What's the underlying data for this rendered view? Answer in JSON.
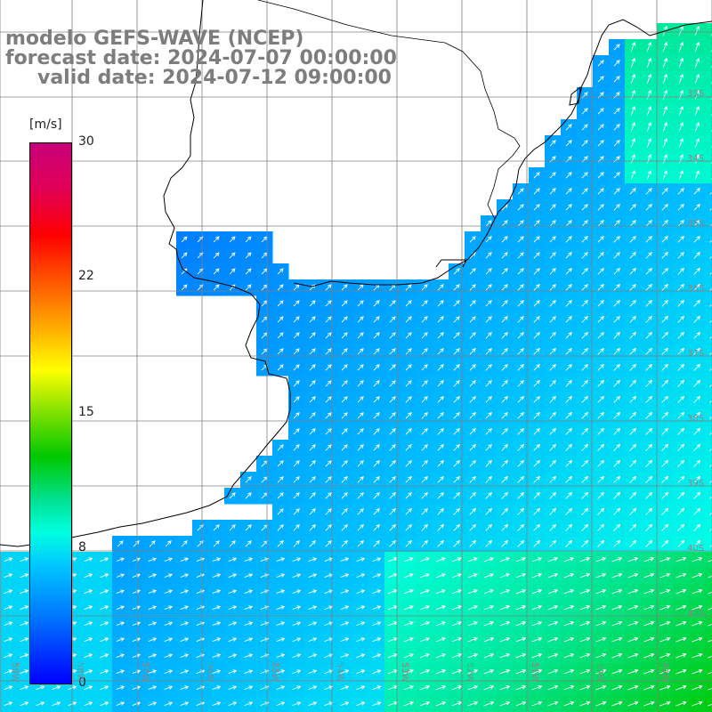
{
  "title": {
    "line1": "modelo GEFS-WAVE (NCEP)",
    "line2": "forecast date: 2024-07-07 00:00:00",
    "line3": "valid date: 2024-07-12 09:00:00"
  },
  "colorbar": {
    "units": "[m/s]",
    "ticks": [
      {
        "label": "30",
        "value": 30
      },
      {
        "label": "22",
        "value": 22
      },
      {
        "label": "15",
        "value": 15
      },
      {
        "label": "8",
        "value": 8
      },
      {
        "label": "0",
        "value": 0
      }
    ],
    "colors": [
      "#0000ff",
      "#0073ff",
      "#00c8ff",
      "#00ffe0",
      "#00c800",
      "#ffff00",
      "#ff0000",
      "#c80078"
    ]
  },
  "map": {
    "land_color": "#ffffff",
    "grid_color": "#808080",
    "lat_labels": [
      "33S",
      "34S",
      "35S",
      "36S",
      "37S",
      "38S",
      "39S",
      "40S",
      "41S"
    ],
    "lon_labels": [
      "59W",
      "58W",
      "57W",
      "56W",
      "55W",
      "54W",
      "53W",
      "52W",
      "51W",
      "50W",
      "49W"
    ]
  }
}
